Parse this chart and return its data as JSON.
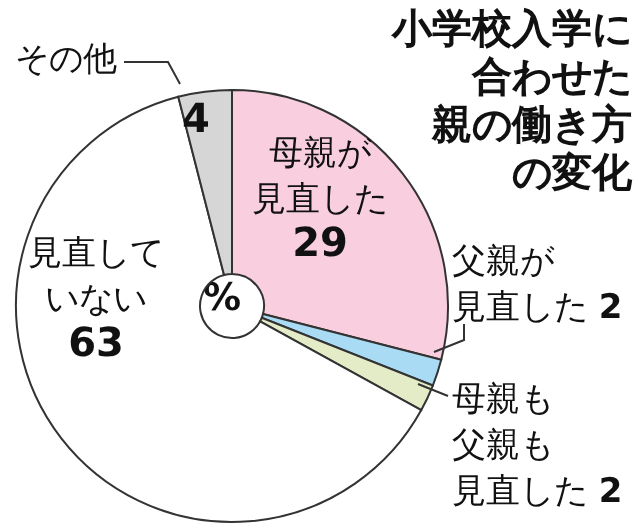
{
  "chart_data": {
    "type": "donut",
    "title": "小学校入学に合わせた親の働き方の変化",
    "categories": [
      "母親が見直した",
      "父親が見直した",
      "母親も父親も見直した",
      "見直していない",
      "その他"
    ],
    "values": [
      29,
      2,
      2,
      63,
      4
    ],
    "colors": [
      "#f9cfe0",
      "#a9dcf4",
      "#e3ecc6",
      "#ffffff",
      "#d6d6d6"
    ],
    "data_labels": true,
    "annotations": [
      "%"
    ]
  }
}
